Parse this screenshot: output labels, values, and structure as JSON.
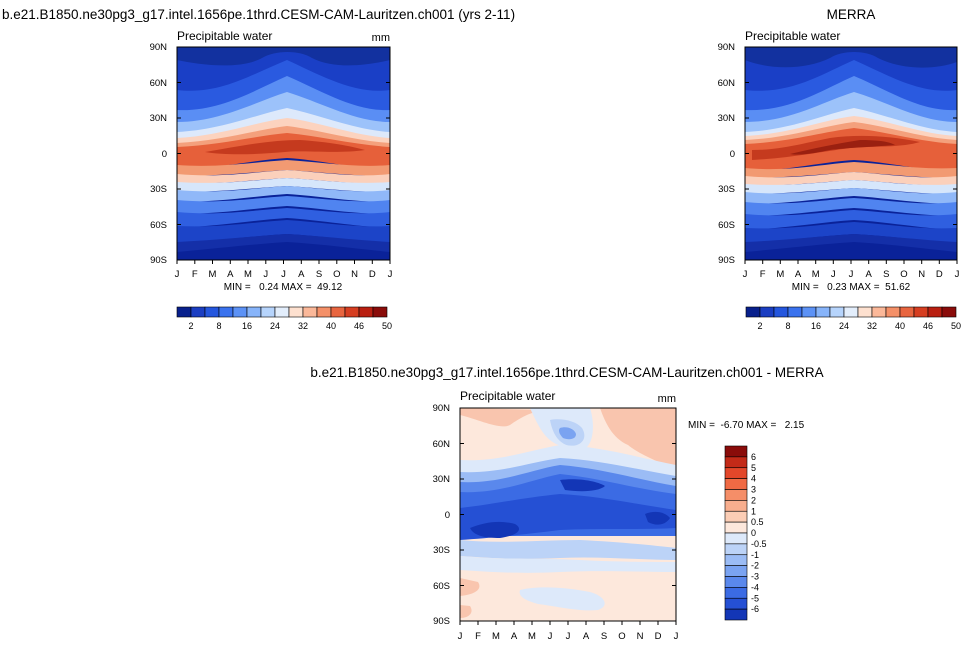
{
  "chart_data": [
    {
      "type": "heatmap",
      "title": "b.e21.B1850.ne30pg3_g17.intel.1656pe.1thrd.CESM-CAM-Lauritzen.ch001 (yrs 2-11)",
      "left_label": "Precipitable water",
      "right_label": "mm",
      "x_ticks": [
        "J",
        "F",
        "M",
        "A",
        "M",
        "J",
        "J",
        "A",
        "S",
        "O",
        "N",
        "D",
        "J"
      ],
      "y_ticks": [
        "90N",
        "60N",
        "30N",
        "0",
        "30S",
        "60S",
        "90S"
      ],
      "stats": "MIN =   0.24 MAX =  49.12",
      "min": 0.24,
      "max": 49.12,
      "colorbar_labels": [
        "2",
        "8",
        "16",
        "24",
        "32",
        "40",
        "46",
        "50"
      ],
      "colorbar_colors": [
        "#08208c",
        "#1b3ec2",
        "#2456de",
        "#3a72ee",
        "#5c92f6",
        "#87b4fa",
        "#b6d4fc",
        "#e3eefc",
        "#fde0cf",
        "#fbb899",
        "#f49068",
        "#e8653f",
        "#d63e21",
        "#b91f11",
        "#8a0c0a"
      ]
    },
    {
      "type": "heatmap",
      "title": "MERRA",
      "left_label": "Precipitable water",
      "right_label": "",
      "x_ticks": [
        "J",
        "F",
        "M",
        "A",
        "M",
        "J",
        "J",
        "A",
        "S",
        "O",
        "N",
        "D",
        "J"
      ],
      "y_ticks": [
        "90N",
        "60N",
        "30N",
        "0",
        "30S",
        "60S",
        "90S"
      ],
      "stats": "MIN =   0.23 MAX =  51.62",
      "min": 0.23,
      "max": 51.62,
      "colorbar_labels": [
        "2",
        "8",
        "16",
        "24",
        "32",
        "40",
        "46",
        "50"
      ],
      "colorbar_colors": [
        "#08208c",
        "#1b3ec2",
        "#2456de",
        "#3a72ee",
        "#5c92f6",
        "#87b4fa",
        "#b6d4fc",
        "#e3eefc",
        "#fde0cf",
        "#fbb899",
        "#f49068",
        "#e8653f",
        "#d63e21",
        "#b91f11",
        "#8a0c0a"
      ]
    },
    {
      "type": "heatmap",
      "title": "b.e21.B1850.ne30pg3_g17.intel.1656pe.1thrd.CESM-CAM-Lauritzen.ch001 - MERRA",
      "left_label": "Precipitable water",
      "right_label": "mm",
      "x_ticks": [
        "J",
        "F",
        "M",
        "A",
        "M",
        "J",
        "J",
        "A",
        "S",
        "O",
        "N",
        "D",
        "J"
      ],
      "y_ticks": [
        "90N",
        "60N",
        "30N",
        "0",
        "30S",
        "60S",
        "90S"
      ],
      "stats": "MIN =  -6.70 MAX =   2.15",
      "min": -6.7,
      "max": 2.15,
      "colorbar_labels": [
        "6",
        "5",
        "4",
        "3",
        "2",
        "1",
        "0.5",
        "0",
        "-0.5",
        "-1",
        "-2",
        "-3",
        "-4",
        "-5",
        "-6"
      ],
      "colorbar_colors": [
        "#8a0c0a",
        "#c32a18",
        "#e3472a",
        "#f06a44",
        "#f58e68",
        "#f8ae8e",
        "#fbcdb5",
        "#fde8dc",
        "#dde9fa",
        "#bcd3f7",
        "#9bbcf5",
        "#7aa3f1",
        "#5a88ec",
        "#3b6be4",
        "#2550d4",
        "#1336b6"
      ]
    }
  ]
}
